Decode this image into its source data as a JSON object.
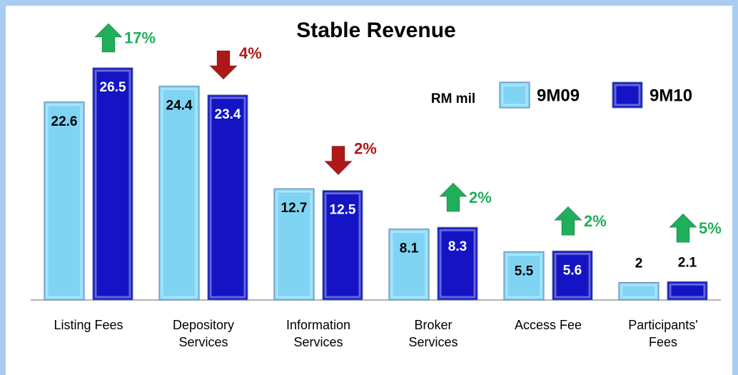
{
  "chart_data": {
    "type": "bar",
    "title": "Stable Revenue",
    "unit_label": "RM mil",
    "categories": [
      "Listing Fees",
      "Depository Services",
      "Information Services",
      "Broker Services",
      "Access Fee",
      "Participants' Fees"
    ],
    "series": [
      {
        "name": "9M09",
        "color": "#7fd4f4",
        "values": [
          22.6,
          24.4,
          12.7,
          8.1,
          5.5,
          2
        ]
      },
      {
        "name": "9M10",
        "color": "#1414c4",
        "values": [
          26.5,
          23.4,
          12.5,
          8.3,
          5.6,
          2.1
        ]
      }
    ],
    "annotations": [
      {
        "text": "17%",
        "direction": "up",
        "color": "#1fae5a"
      },
      {
        "text": "4%",
        "direction": "down",
        "color": "#b01818"
      },
      {
        "text": "2%",
        "direction": "down",
        "color": "#b01818"
      },
      {
        "text": "2%",
        "direction": "up",
        "color": "#1fae5a"
      },
      {
        "text": "2%",
        "direction": "up",
        "color": "#1fae5a"
      },
      {
        "text": "5%",
        "direction": "up",
        "color": "#1fae5a"
      }
    ],
    "ylim": [
      0,
      30
    ]
  }
}
